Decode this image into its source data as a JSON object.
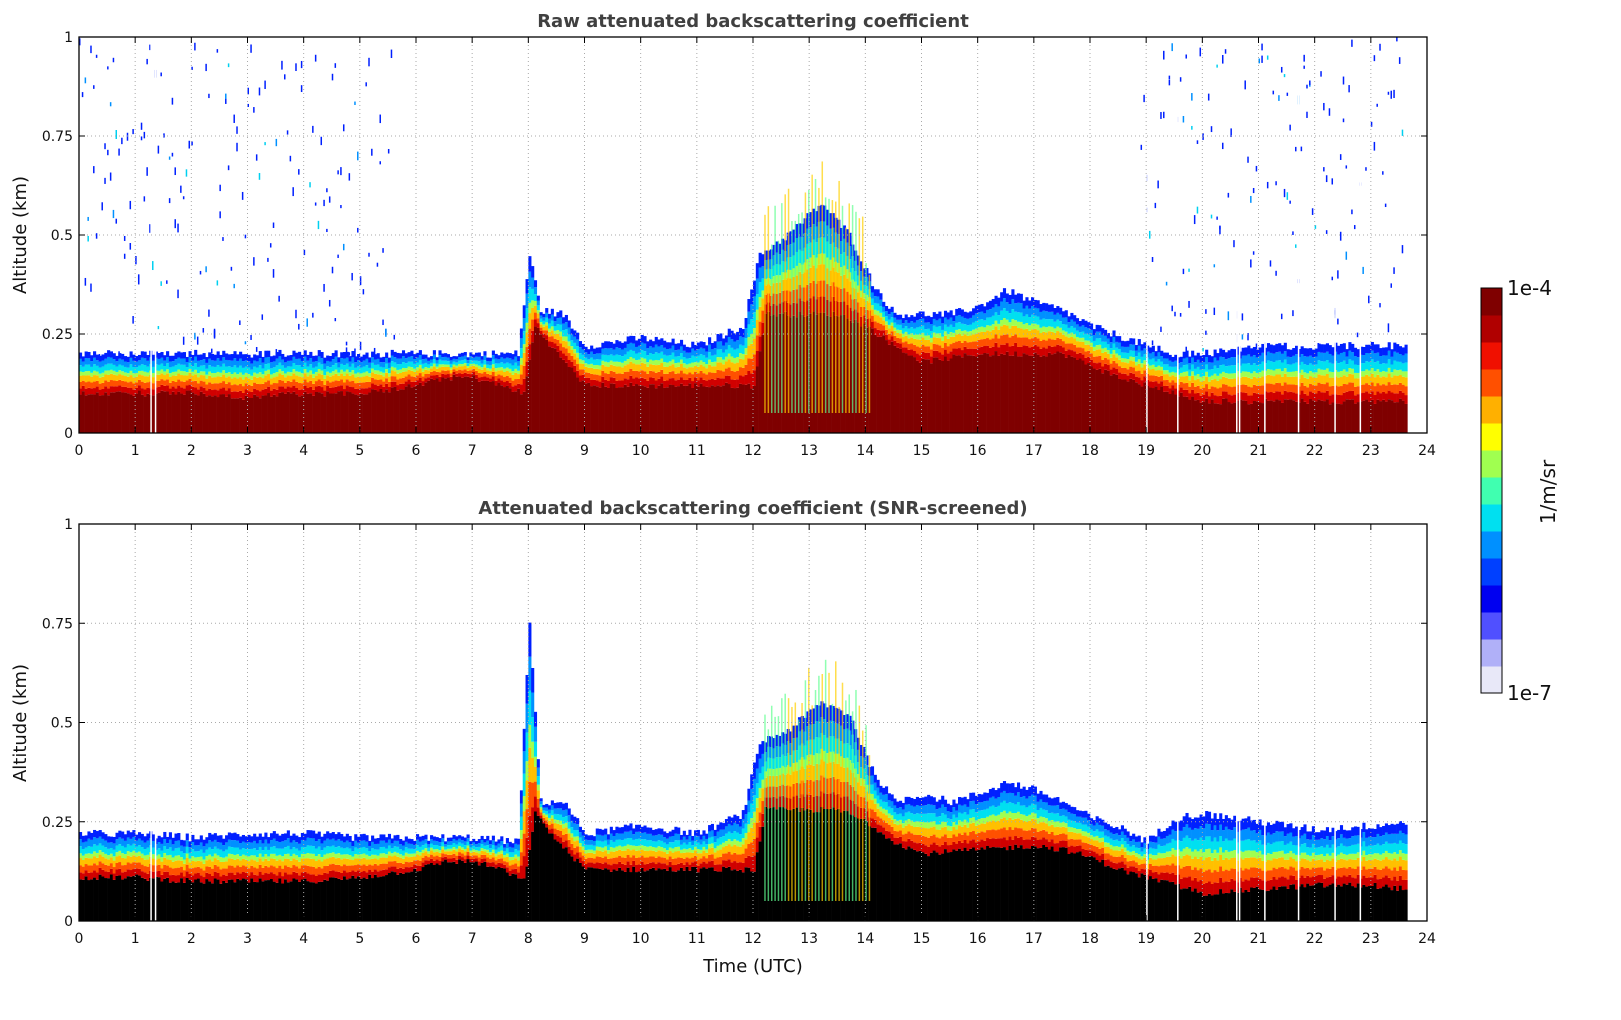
{
  "chart_data": [
    {
      "type": "heatmap",
      "title": "Raw attenuated backscattering coefficient",
      "xlabel": "",
      "ylabel": "Altitude (km)",
      "xlim": [
        0,
        24
      ],
      "ylim": [
        0,
        1
      ],
      "xticks": [
        "0",
        "1",
        "2",
        "3",
        "4",
        "5",
        "6",
        "7",
        "8",
        "9",
        "10",
        "11",
        "12",
        "13",
        "14",
        "15",
        "16",
        "17",
        "18",
        "19",
        "20",
        "21",
        "22",
        "23",
        "24"
      ],
      "yticks": [
        "0",
        "0.25",
        "0.5",
        "0.75",
        "1"
      ],
      "grid": true,
      "saturated_color": "#7f0000",
      "noise_periods": [
        [
          0,
          5.6
        ],
        [
          18.9,
          23.6
        ]
      ],
      "data_end_time": 23.65,
      "layer_top_km": {
        "t": [
          0,
          1,
          2,
          3,
          4,
          5,
          6,
          7,
          7.8,
          8.0,
          8.2,
          8.6,
          9,
          10,
          11,
          11.8,
          12.1,
          12.6,
          13.2,
          13.7,
          14.1,
          14.5,
          15,
          15.5,
          16,
          16.5,
          17,
          17.5,
          18,
          18.6,
          19,
          19.5,
          20,
          21,
          22,
          23,
          23.65
        ],
        "h": [
          0.2,
          0.2,
          0.2,
          0.2,
          0.2,
          0.2,
          0.2,
          0.2,
          0.2,
          0.45,
          0.31,
          0.3,
          0.22,
          0.24,
          0.22,
          0.27,
          0.45,
          0.5,
          0.58,
          0.5,
          0.38,
          0.3,
          0.3,
          0.3,
          0.32,
          0.36,
          0.33,
          0.31,
          0.27,
          0.24,
          0.22,
          0.2,
          0.2,
          0.22,
          0.22,
          0.22,
          0.22
        ]
      },
      "saturation_top_km": {
        "t": [
          0,
          1,
          2,
          3,
          4,
          5,
          6,
          6.5,
          7,
          7.5,
          7.9,
          8.1,
          8.5,
          9,
          10,
          11,
          12,
          12.2,
          13,
          13.5,
          14,
          14.5,
          15,
          16,
          17,
          17.5,
          18,
          18.5,
          19,
          19.5,
          20,
          21,
          22,
          23,
          23.65
        ],
        "h": [
          0.1,
          0.1,
          0.1,
          0.09,
          0.1,
          0.1,
          0.12,
          0.14,
          0.14,
          0.12,
          0.1,
          0.27,
          0.2,
          0.12,
          0.12,
          0.12,
          0.12,
          0.3,
          0.3,
          0.3,
          0.27,
          0.22,
          0.18,
          0.2,
          0.2,
          0.2,
          0.17,
          0.14,
          0.12,
          0.1,
          0.08,
          0.08,
          0.08,
          0.08,
          0.08
        ]
      }
    },
    {
      "type": "heatmap",
      "title": "Attenuated backscattering coefficient (SNR-screened)",
      "xlabel": "Time (UTC)",
      "ylabel": "Altitude (km)",
      "xlim": [
        0,
        24
      ],
      "ylim": [
        0,
        1
      ],
      "xticks": [
        "0",
        "1",
        "2",
        "3",
        "4",
        "5",
        "6",
        "7",
        "8",
        "9",
        "10",
        "11",
        "12",
        "13",
        "14",
        "15",
        "16",
        "17",
        "18",
        "19",
        "20",
        "21",
        "22",
        "23",
        "24"
      ],
      "yticks": [
        "0",
        "0.25",
        "0.5",
        "0.75",
        "1"
      ],
      "grid": true,
      "saturated_color": "#000000",
      "noise_periods": [],
      "data_end_time": 23.65,
      "layer_top_km": {
        "t": [
          0,
          1,
          2,
          3,
          4,
          5,
          6,
          7,
          7.8,
          8.0,
          8.2,
          8.6,
          9,
          10,
          11,
          11.8,
          12.1,
          12.6,
          13.2,
          13.7,
          14.1,
          14.5,
          15,
          15.5,
          16,
          16.5,
          17,
          17.5,
          18,
          18.6,
          19,
          19.5,
          20,
          21,
          22,
          23,
          23.65
        ],
        "h": [
          0.22,
          0.22,
          0.21,
          0.22,
          0.22,
          0.21,
          0.21,
          0.21,
          0.2,
          0.75,
          0.3,
          0.3,
          0.22,
          0.24,
          0.22,
          0.27,
          0.45,
          0.48,
          0.55,
          0.52,
          0.38,
          0.3,
          0.32,
          0.3,
          0.32,
          0.35,
          0.33,
          0.3,
          0.26,
          0.23,
          0.2,
          0.26,
          0.27,
          0.25,
          0.23,
          0.24,
          0.25
        ]
      },
      "saturation_top_km": {
        "t": [
          0,
          1,
          2,
          3,
          4,
          5,
          6,
          6.5,
          7,
          7.5,
          7.9,
          8.1,
          8.5,
          9,
          10,
          11,
          12,
          12.2,
          13,
          13.5,
          14,
          14.5,
          15,
          16,
          17,
          17.5,
          18,
          18.5,
          19,
          19.5,
          20,
          21,
          22,
          23,
          23.65
        ],
        "h": [
          0.11,
          0.11,
          0.1,
          0.1,
          0.1,
          0.11,
          0.13,
          0.15,
          0.15,
          0.13,
          0.1,
          0.27,
          0.2,
          0.13,
          0.13,
          0.13,
          0.13,
          0.28,
          0.28,
          0.28,
          0.25,
          0.2,
          0.17,
          0.18,
          0.19,
          0.18,
          0.16,
          0.13,
          0.11,
          0.09,
          0.07,
          0.08,
          0.09,
          0.09,
          0.08
        ]
      }
    }
  ],
  "colorbar": {
    "label": "1/m/sr",
    "max_label": "1e-4",
    "min_label": "1e-7",
    "scale": "log",
    "colors": [
      "#e8e8f8",
      "#b0b0f8",
      "#5050ff",
      "#0000f0",
      "#0040ff",
      "#0090ff",
      "#00e0f0",
      "#40ffb0",
      "#a0ff50",
      "#ffff00",
      "#ffb000",
      "#ff5000",
      "#f01000",
      "#b00000",
      "#7f0000"
    ]
  }
}
